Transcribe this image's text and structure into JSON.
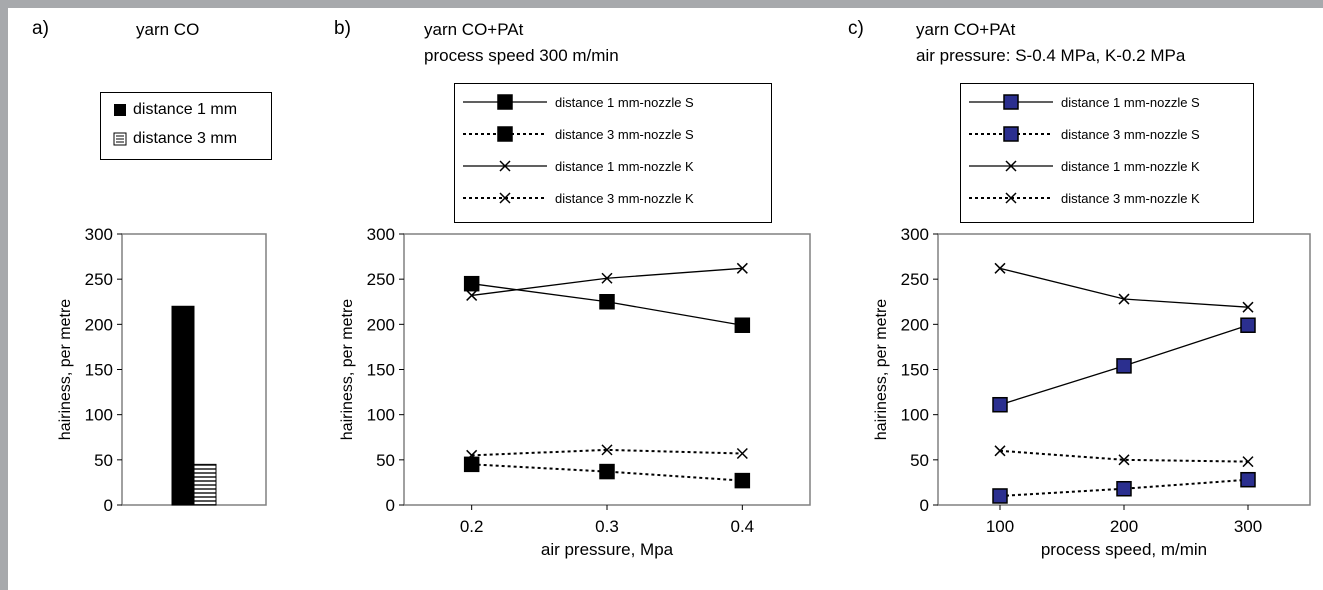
{
  "panels": [
    {
      "letter": "a)",
      "title_lines": [
        "yarn CO"
      ],
      "chart_data": {
        "type": "bar",
        "categories": [
          ""
        ],
        "series": [
          {
            "name": "distance 1 mm",
            "values": [
              220
            ],
            "fill": "solid-black"
          },
          {
            "name": "distance 3 mm",
            "values": [
              45
            ],
            "fill": "hatched"
          }
        ],
        "xlabel": "",
        "ylabel": "hairiness, per metre",
        "ylim": [
          0,
          300
        ],
        "yticks": [
          0,
          50,
          100,
          150,
          200,
          250,
          300
        ],
        "grid": false
      }
    },
    {
      "letter": "b)",
      "title_lines": [
        "yarn CO+PAt",
        "process speed 300 m/min"
      ],
      "chart_data": {
        "type": "line",
        "x": [
          0.2,
          0.3,
          0.4
        ],
        "xticks": [
          "0.2",
          "0.3",
          "0.4"
        ],
        "xlim": [
          0.15,
          0.45
        ],
        "series": [
          {
            "name": "distance 1 mm-nozzle S",
            "values": [
              245,
              225,
              199
            ],
            "line": "solid",
            "marker": "square"
          },
          {
            "name": "distance 3 mm-nozzle S",
            "values": [
              45,
              37,
              27
            ],
            "line": "dotted",
            "marker": "square"
          },
          {
            "name": "distance 1 mm-nozzle K",
            "values": [
              232,
              251,
              262
            ],
            "line": "solid",
            "marker": "x"
          },
          {
            "name": "distance 3 mm-nozzle K",
            "values": [
              55,
              61,
              57
            ],
            "line": "dotted",
            "marker": "x"
          }
        ],
        "xlabel": "air pressure, Mpa",
        "ylabel": "hairiness, per metre",
        "ylim": [
          0,
          300
        ],
        "yticks": [
          0,
          50,
          100,
          150,
          200,
          250,
          300
        ],
        "grid": false,
        "marker_color": "#000000"
      }
    },
    {
      "letter": "c)",
      "title_lines": [
        "yarn CO+PAt",
        "air pressure: S-0.4 MPa, K-0.2 MPa"
      ],
      "chart_data": {
        "type": "line",
        "x": [
          100,
          200,
          300
        ],
        "xticks": [
          "100",
          "200",
          "300"
        ],
        "xlim": [
          50,
          350
        ],
        "series": [
          {
            "name": "distance 1 mm-nozzle S",
            "values": [
              111,
              154,
              199
            ],
            "line": "solid",
            "marker": "square"
          },
          {
            "name": "distance 3 mm-nozzle S",
            "values": [
              10,
              18,
              28
            ],
            "line": "dotted",
            "marker": "square"
          },
          {
            "name": "distance 1 mm-nozzle K",
            "values": [
              262,
              228,
              219
            ],
            "line": "solid",
            "marker": "x"
          },
          {
            "name": "distance 3 mm-nozzle K",
            "values": [
              60,
              50,
              48
            ],
            "line": "dotted",
            "marker": "x"
          }
        ],
        "xlabel": "process speed, m/min",
        "ylabel": "hairiness, per metre",
        "ylim": [
          0,
          300
        ],
        "yticks": [
          0,
          50,
          100,
          150,
          200,
          250,
          300
        ],
        "grid": false,
        "marker_color": "#2b2f8f"
      }
    }
  ],
  "colors": {
    "frame": "#a7a9ac",
    "plot_border": "#808080",
    "text": "#000000"
  }
}
